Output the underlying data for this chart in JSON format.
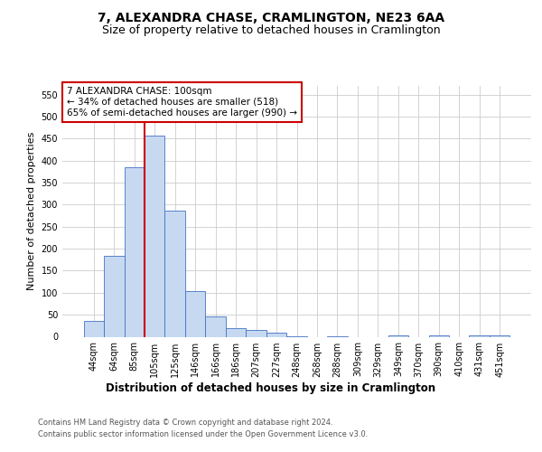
{
  "title": "7, ALEXANDRA CHASE, CRAMLINGTON, NE23 6AA",
  "subtitle": "Size of property relative to detached houses in Cramlington",
  "xlabel": "Distribution of detached houses by size in Cramlington",
  "ylabel": "Number of detached properties",
  "categories": [
    "44sqm",
    "64sqm",
    "85sqm",
    "105sqm",
    "125sqm",
    "146sqm",
    "166sqm",
    "186sqm",
    "207sqm",
    "227sqm",
    "248sqm",
    "268sqm",
    "288sqm",
    "309sqm",
    "329sqm",
    "349sqm",
    "370sqm",
    "390sqm",
    "410sqm",
    "431sqm",
    "451sqm"
  ],
  "values": [
    35,
    183,
    385,
    457,
    287,
    103,
    47,
    20,
    15,
    10,
    2,
    0,
    2,
    0,
    0,
    4,
    0,
    4,
    0,
    3,
    3
  ],
  "bar_color": "#c6d9f1",
  "bar_edge_color": "#4472c4",
  "vline_color": "#cc0000",
  "vline_index": 3,
  "ylim": [
    0,
    570
  ],
  "yticks": [
    0,
    50,
    100,
    150,
    200,
    250,
    300,
    350,
    400,
    450,
    500,
    550
  ],
  "annotation_text": "7 ALEXANDRA CHASE: 100sqm\n← 34% of detached houses are smaller (518)\n65% of semi-detached houses are larger (990) →",
  "annotation_box_color": "#ffffff",
  "annotation_box_edge": "#cc0000",
  "footer1": "Contains HM Land Registry data © Crown copyright and database right 2024.",
  "footer2": "Contains public sector information licensed under the Open Government Licence v3.0.",
  "title_fontsize": 10,
  "subtitle_fontsize": 9,
  "xlabel_fontsize": 8.5,
  "ylabel_fontsize": 8,
  "tick_fontsize": 7,
  "annotation_fontsize": 7.5,
  "background_color": "#ffffff",
  "grid_color": "#cccccc"
}
